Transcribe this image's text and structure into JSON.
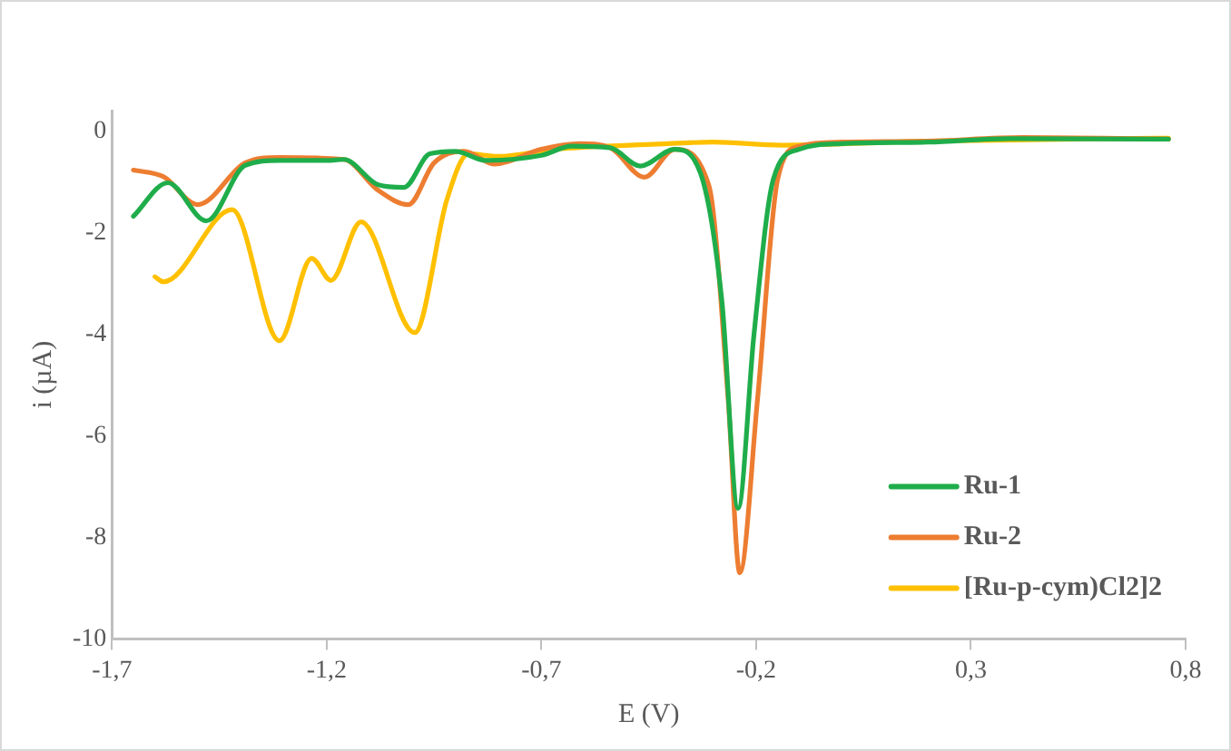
{
  "chart_data": {
    "type": "line",
    "xlabel": "E (V)",
    "ylabel": "i (µA)",
    "xlim": [
      -1.7,
      0.8
    ],
    "xticks": [
      {
        "value": -1.7,
        "label": "-1,7"
      },
      {
        "value": -1.2,
        "label": "-1,2"
      },
      {
        "value": -0.7,
        "label": "-0,7"
      },
      {
        "value": -0.2,
        "label": "-0,2"
      },
      {
        "value": 0.3,
        "label": "0,3"
      },
      {
        "value": 0.8,
        "label": "0,8"
      }
    ],
    "ylim": [
      -10,
      0.4
    ],
    "yticks": [
      0,
      -2,
      -4,
      -6,
      -8,
      -10
    ],
    "grid": false,
    "legend": "bottom right",
    "marker": "none",
    "line_style": "solid",
    "series": [
      {
        "name": "Ru-1",
        "color": "#1fad4b",
        "x": [
          -1.65,
          -1.57,
          -1.48,
          -1.39,
          -1.31,
          -1.2,
          -1.16,
          -1.08,
          -1.02,
          -0.96,
          -0.9,
          -0.83,
          -0.7,
          -0.63,
          -0.54,
          -0.47,
          -0.39,
          -0.33,
          -0.28,
          -0.242,
          -0.205,
          -0.16,
          -0.1,
          0.0,
          0.2,
          0.39,
          0.76
        ],
        "values": [
          -1.68,
          -1.02,
          -1.77,
          -0.68,
          -0.58,
          -0.58,
          -0.56,
          -1.06,
          -1.11,
          -0.45,
          -0.4,
          -0.58,
          -0.48,
          -0.3,
          -0.33,
          -0.69,
          -0.36,
          -0.82,
          -3.33,
          -7.43,
          -4.0,
          -0.95,
          -0.36,
          -0.25,
          -0.22,
          -0.15,
          -0.16
        ]
      },
      {
        "name": "Ru-2",
        "color": "#ed7d31",
        "x": [
          -1.65,
          -1.58,
          -1.5,
          -1.39,
          -1.31,
          -1.16,
          -1.08,
          -1.01,
          -0.95,
          -0.88,
          -0.81,
          -0.7,
          -0.61,
          -0.54,
          -0.46,
          -0.39,
          -0.31,
          -0.265,
          -0.238,
          -0.197,
          -0.15,
          -0.1,
          0.0,
          0.2,
          0.42,
          0.76
        ],
        "values": [
          -0.77,
          -0.9,
          -1.45,
          -0.63,
          -0.52,
          -0.56,
          -1.17,
          -1.45,
          -0.63,
          -0.4,
          -0.65,
          -0.36,
          -0.25,
          -0.33,
          -0.91,
          -0.36,
          -1.08,
          -5.3,
          -8.7,
          -5.3,
          -0.95,
          -0.3,
          -0.22,
          -0.2,
          -0.13,
          -0.16
        ]
      },
      {
        "name": "[Ru-p-cym)Cl2]2",
        "color": "#ffc000",
        "x": [
          -1.6,
          -1.58,
          -1.42,
          -1.31,
          -1.235,
          -1.19,
          -1.12,
          -0.995,
          -0.92,
          -0.87,
          -0.8,
          -0.67,
          -0.43,
          -0.3,
          -0.14,
          0.2,
          0.76
        ],
        "values": [
          -2.87,
          -2.97,
          -1.55,
          -4.13,
          -2.51,
          -2.94,
          -1.79,
          -3.97,
          -1.35,
          -0.45,
          -0.5,
          -0.36,
          -0.26,
          -0.22,
          -0.28,
          -0.2,
          -0.14
        ]
      }
    ]
  }
}
